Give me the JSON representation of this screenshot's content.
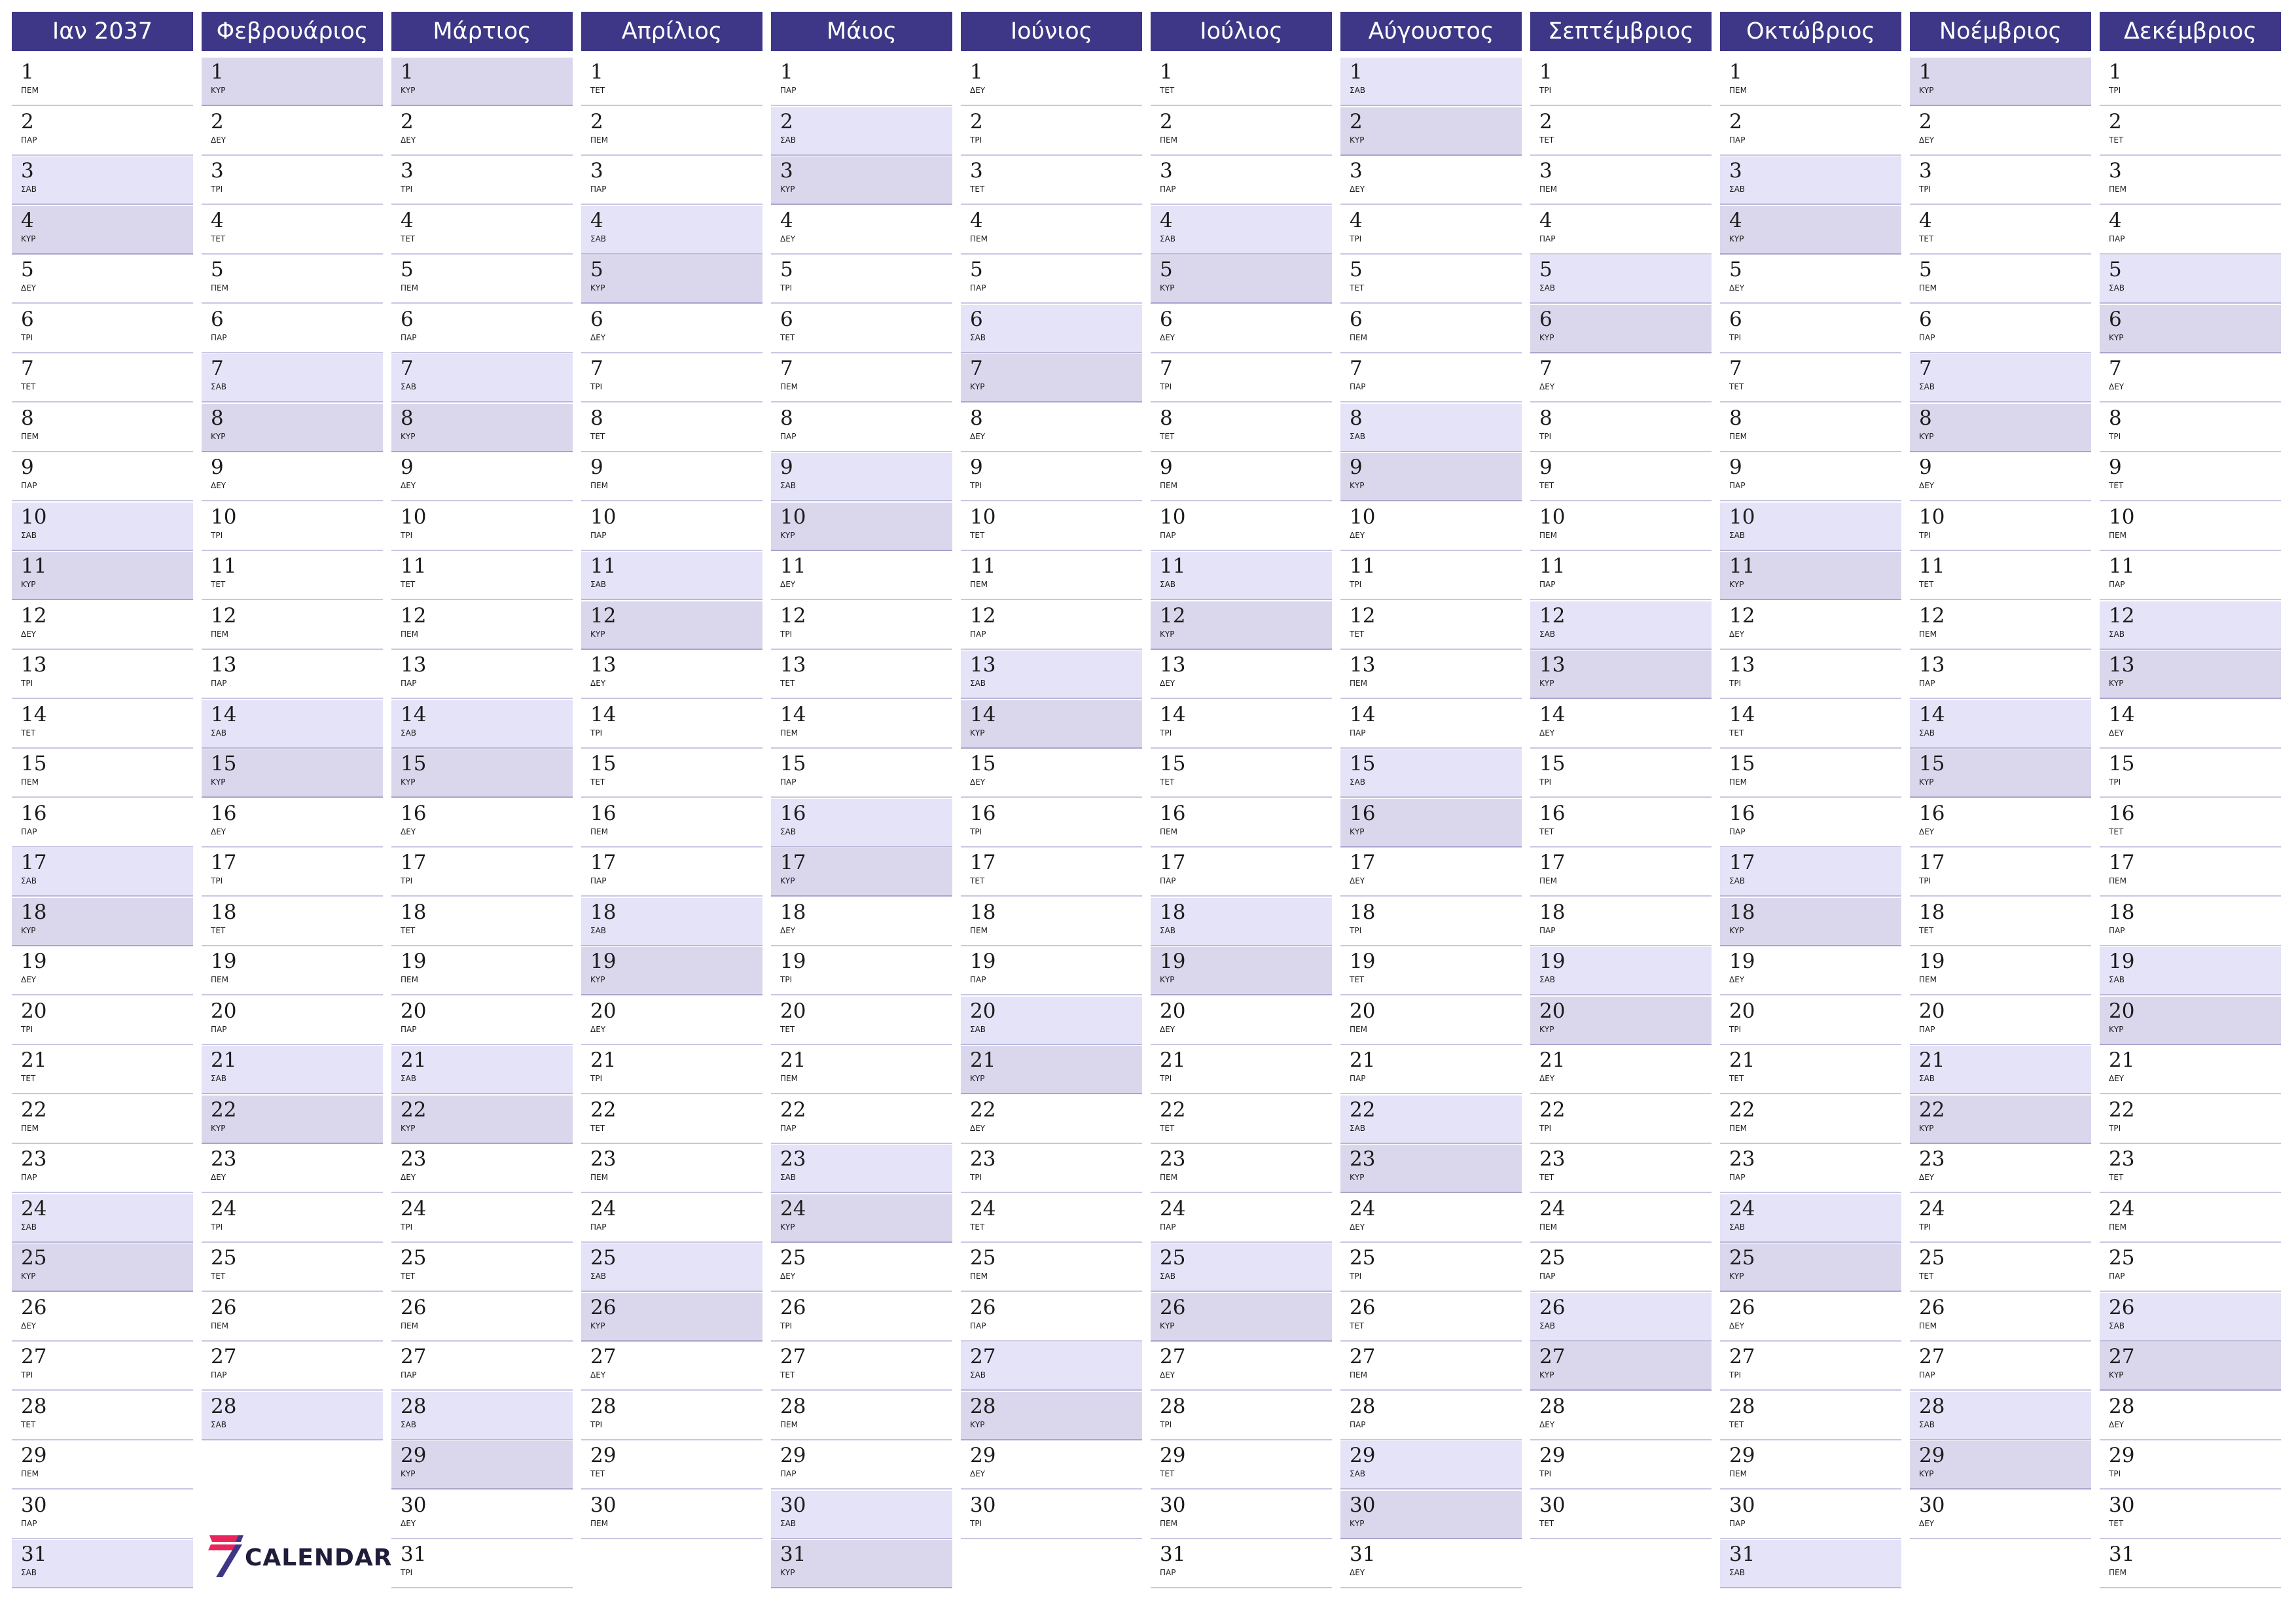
{
  "year": "2037",
  "colors": {
    "header": "#3e3787",
    "saturday": "#e4e3f7",
    "sunday": "#dad7ec"
  },
  "logo": {
    "icon": "seven-calendar-logo-icon",
    "text": "CALENDAR"
  },
  "months": [
    {
      "name": "Ιαν 2037",
      "days": [
        "ΠΕΜ",
        "ΠΑΡ",
        "ΣΑΒ",
        "ΚΥΡ",
        "ΔΕΥ",
        "ΤΡΙ",
        "ΤΕΤ",
        "ΠΕΜ",
        "ΠΑΡ",
        "ΣΑΒ",
        "ΚΥΡ",
        "ΔΕΥ",
        "ΤΡΙ",
        "ΤΕΤ",
        "ΠΕΜ",
        "ΠΑΡ",
        "ΣΑΒ",
        "ΚΥΡ",
        "ΔΕΥ",
        "ΤΡΙ",
        "ΤΕΤ",
        "ΠΕΜ",
        "ΠΑΡ",
        "ΣΑΒ",
        "ΚΥΡ",
        "ΔΕΥ",
        "ΤΡΙ",
        "ΤΕΤ",
        "ΠΕΜ",
        "ΠΑΡ",
        "ΣΑΒ"
      ]
    },
    {
      "name": "Φεβρουάριος",
      "days": [
        "ΚΥΡ",
        "ΔΕΥ",
        "ΤΡΙ",
        "ΤΕΤ",
        "ΠΕΜ",
        "ΠΑΡ",
        "ΣΑΒ",
        "ΚΥΡ",
        "ΔΕΥ",
        "ΤΡΙ",
        "ΤΕΤ",
        "ΠΕΜ",
        "ΠΑΡ",
        "ΣΑΒ",
        "ΚΥΡ",
        "ΔΕΥ",
        "ΤΡΙ",
        "ΤΕΤ",
        "ΠΕΜ",
        "ΠΑΡ",
        "ΣΑΒ",
        "ΚΥΡ",
        "ΔΕΥ",
        "ΤΡΙ",
        "ΤΕΤ",
        "ΠΕΜ",
        "ΠΑΡ",
        "ΣΑΒ"
      ]
    },
    {
      "name": "Μάρτιος",
      "days": [
        "ΚΥΡ",
        "ΔΕΥ",
        "ΤΡΙ",
        "ΤΕΤ",
        "ΠΕΜ",
        "ΠΑΡ",
        "ΣΑΒ",
        "ΚΥΡ",
        "ΔΕΥ",
        "ΤΡΙ",
        "ΤΕΤ",
        "ΠΕΜ",
        "ΠΑΡ",
        "ΣΑΒ",
        "ΚΥΡ",
        "ΔΕΥ",
        "ΤΡΙ",
        "ΤΕΤ",
        "ΠΕΜ",
        "ΠΑΡ",
        "ΣΑΒ",
        "ΚΥΡ",
        "ΔΕΥ",
        "ΤΡΙ",
        "ΤΕΤ",
        "ΠΕΜ",
        "ΠΑΡ",
        "ΣΑΒ",
        "ΚΥΡ",
        "ΔΕΥ",
        "ΤΡΙ"
      ]
    },
    {
      "name": "Απρίλιος",
      "days": [
        "ΤΕΤ",
        "ΠΕΜ",
        "ΠΑΡ",
        "ΣΑΒ",
        "ΚΥΡ",
        "ΔΕΥ",
        "ΤΡΙ",
        "ΤΕΤ",
        "ΠΕΜ",
        "ΠΑΡ",
        "ΣΑΒ",
        "ΚΥΡ",
        "ΔΕΥ",
        "ΤΡΙ",
        "ΤΕΤ",
        "ΠΕΜ",
        "ΠΑΡ",
        "ΣΑΒ",
        "ΚΥΡ",
        "ΔΕΥ",
        "ΤΡΙ",
        "ΤΕΤ",
        "ΠΕΜ",
        "ΠΑΡ",
        "ΣΑΒ",
        "ΚΥΡ",
        "ΔΕΥ",
        "ΤΡΙ",
        "ΤΕΤ",
        "ΠΕΜ"
      ]
    },
    {
      "name": "Μάιος",
      "days": [
        "ΠΑΡ",
        "ΣΑΒ",
        "ΚΥΡ",
        "ΔΕΥ",
        "ΤΡΙ",
        "ΤΕΤ",
        "ΠΕΜ",
        "ΠΑΡ",
        "ΣΑΒ",
        "ΚΥΡ",
        "ΔΕΥ",
        "ΤΡΙ",
        "ΤΕΤ",
        "ΠΕΜ",
        "ΠΑΡ",
        "ΣΑΒ",
        "ΚΥΡ",
        "ΔΕΥ",
        "ΤΡΙ",
        "ΤΕΤ",
        "ΠΕΜ",
        "ΠΑΡ",
        "ΣΑΒ",
        "ΚΥΡ",
        "ΔΕΥ",
        "ΤΡΙ",
        "ΤΕΤ",
        "ΠΕΜ",
        "ΠΑΡ",
        "ΣΑΒ",
        "ΚΥΡ"
      ]
    },
    {
      "name": "Ιούνιος",
      "days": [
        "ΔΕΥ",
        "ΤΡΙ",
        "ΤΕΤ",
        "ΠΕΜ",
        "ΠΑΡ",
        "ΣΑΒ",
        "ΚΥΡ",
        "ΔΕΥ",
        "ΤΡΙ",
        "ΤΕΤ",
        "ΠΕΜ",
        "ΠΑΡ",
        "ΣΑΒ",
        "ΚΥΡ",
        "ΔΕΥ",
        "ΤΡΙ",
        "ΤΕΤ",
        "ΠΕΜ",
        "ΠΑΡ",
        "ΣΑΒ",
        "ΚΥΡ",
        "ΔΕΥ",
        "ΤΡΙ",
        "ΤΕΤ",
        "ΠΕΜ",
        "ΠΑΡ",
        "ΣΑΒ",
        "ΚΥΡ",
        "ΔΕΥ",
        "ΤΡΙ"
      ]
    },
    {
      "name": "Ιούλιος",
      "days": [
        "ΤΕΤ",
        "ΠΕΜ",
        "ΠΑΡ",
        "ΣΑΒ",
        "ΚΥΡ",
        "ΔΕΥ",
        "ΤΡΙ",
        "ΤΕΤ",
        "ΠΕΜ",
        "ΠΑΡ",
        "ΣΑΒ",
        "ΚΥΡ",
        "ΔΕΥ",
        "ΤΡΙ",
        "ΤΕΤ",
        "ΠΕΜ",
        "ΠΑΡ",
        "ΣΑΒ",
        "ΚΥΡ",
        "ΔΕΥ",
        "ΤΡΙ",
        "ΤΕΤ",
        "ΠΕΜ",
        "ΠΑΡ",
        "ΣΑΒ",
        "ΚΥΡ",
        "ΔΕΥ",
        "ΤΡΙ",
        "ΤΕΤ",
        "ΠΕΜ",
        "ΠΑΡ"
      ]
    },
    {
      "name": "Αύγουστος",
      "days": [
        "ΣΑΒ",
        "ΚΥΡ",
        "ΔΕΥ",
        "ΤΡΙ",
        "ΤΕΤ",
        "ΠΕΜ",
        "ΠΑΡ",
        "ΣΑΒ",
        "ΚΥΡ",
        "ΔΕΥ",
        "ΤΡΙ",
        "ΤΕΤ",
        "ΠΕΜ",
        "ΠΑΡ",
        "ΣΑΒ",
        "ΚΥΡ",
        "ΔΕΥ",
        "ΤΡΙ",
        "ΤΕΤ",
        "ΠΕΜ",
        "ΠΑΡ",
        "ΣΑΒ",
        "ΚΥΡ",
        "ΔΕΥ",
        "ΤΡΙ",
        "ΤΕΤ",
        "ΠΕΜ",
        "ΠΑΡ",
        "ΣΑΒ",
        "ΚΥΡ",
        "ΔΕΥ"
      ]
    },
    {
      "name": "Σεπτέμβριος",
      "days": [
        "ΤΡΙ",
        "ΤΕΤ",
        "ΠΕΜ",
        "ΠΑΡ",
        "ΣΑΒ",
        "ΚΥΡ",
        "ΔΕΥ",
        "ΤΡΙ",
        "ΤΕΤ",
        "ΠΕΜ",
        "ΠΑΡ",
        "ΣΑΒ",
        "ΚΥΡ",
        "ΔΕΥ",
        "ΤΡΙ",
        "ΤΕΤ",
        "ΠΕΜ",
        "ΠΑΡ",
        "ΣΑΒ",
        "ΚΥΡ",
        "ΔΕΥ",
        "ΤΡΙ",
        "ΤΕΤ",
        "ΠΕΜ",
        "ΠΑΡ",
        "ΣΑΒ",
        "ΚΥΡ",
        "ΔΕΥ",
        "ΤΡΙ",
        "ΤΕΤ"
      ]
    },
    {
      "name": "Οκτώβριος",
      "days": [
        "ΠΕΜ",
        "ΠΑΡ",
        "ΣΑΒ",
        "ΚΥΡ",
        "ΔΕΥ",
        "ΤΡΙ",
        "ΤΕΤ",
        "ΠΕΜ",
        "ΠΑΡ",
        "ΣΑΒ",
        "ΚΥΡ",
        "ΔΕΥ",
        "ΤΡΙ",
        "ΤΕΤ",
        "ΠΕΜ",
        "ΠΑΡ",
        "ΣΑΒ",
        "ΚΥΡ",
        "ΔΕΥ",
        "ΤΡΙ",
        "ΤΕΤ",
        "ΠΕΜ",
        "ΠΑΡ",
        "ΣΑΒ",
        "ΚΥΡ",
        "ΔΕΥ",
        "ΤΡΙ",
        "ΤΕΤ",
        "ΠΕΜ",
        "ΠΑΡ",
        "ΣΑΒ"
      ]
    },
    {
      "name": "Νοέμβριος",
      "days": [
        "ΚΥΡ",
        "ΔΕΥ",
        "ΤΡΙ",
        "ΤΕΤ",
        "ΠΕΜ",
        "ΠΑΡ",
        "ΣΑΒ",
        "ΚΥΡ",
        "ΔΕΥ",
        "ΤΡΙ",
        "ΤΕΤ",
        "ΠΕΜ",
        "ΠΑΡ",
        "ΣΑΒ",
        "ΚΥΡ",
        "ΔΕΥ",
        "ΤΡΙ",
        "ΤΕΤ",
        "ΠΕΜ",
        "ΠΑΡ",
        "ΣΑΒ",
        "ΚΥΡ",
        "ΔΕΥ",
        "ΤΡΙ",
        "ΤΕΤ",
        "ΠΕΜ",
        "ΠΑΡ",
        "ΣΑΒ",
        "ΚΥΡ",
        "ΔΕΥ"
      ]
    },
    {
      "name": "Δεκέμβριος",
      "days": [
        "ΤΡΙ",
        "ΤΕΤ",
        "ΠΕΜ",
        "ΠΑΡ",
        "ΣΑΒ",
        "ΚΥΡ",
        "ΔΕΥ",
        "ΤΡΙ",
        "ΤΕΤ",
        "ΠΕΜ",
        "ΠΑΡ",
        "ΣΑΒ",
        "ΚΥΡ",
        "ΔΕΥ",
        "ΤΡΙ",
        "ΤΕΤ",
        "ΠΕΜ",
        "ΠΑΡ",
        "ΣΑΒ",
        "ΚΥΡ",
        "ΔΕΥ",
        "ΤΡΙ",
        "ΤΕΤ",
        "ΠΕΜ",
        "ΠΑΡ",
        "ΣΑΒ",
        "ΚΥΡ",
        "ΔΕΥ",
        "ΤΡΙ",
        "ΤΕΤ",
        "ΠΕΜ"
      ]
    }
  ]
}
